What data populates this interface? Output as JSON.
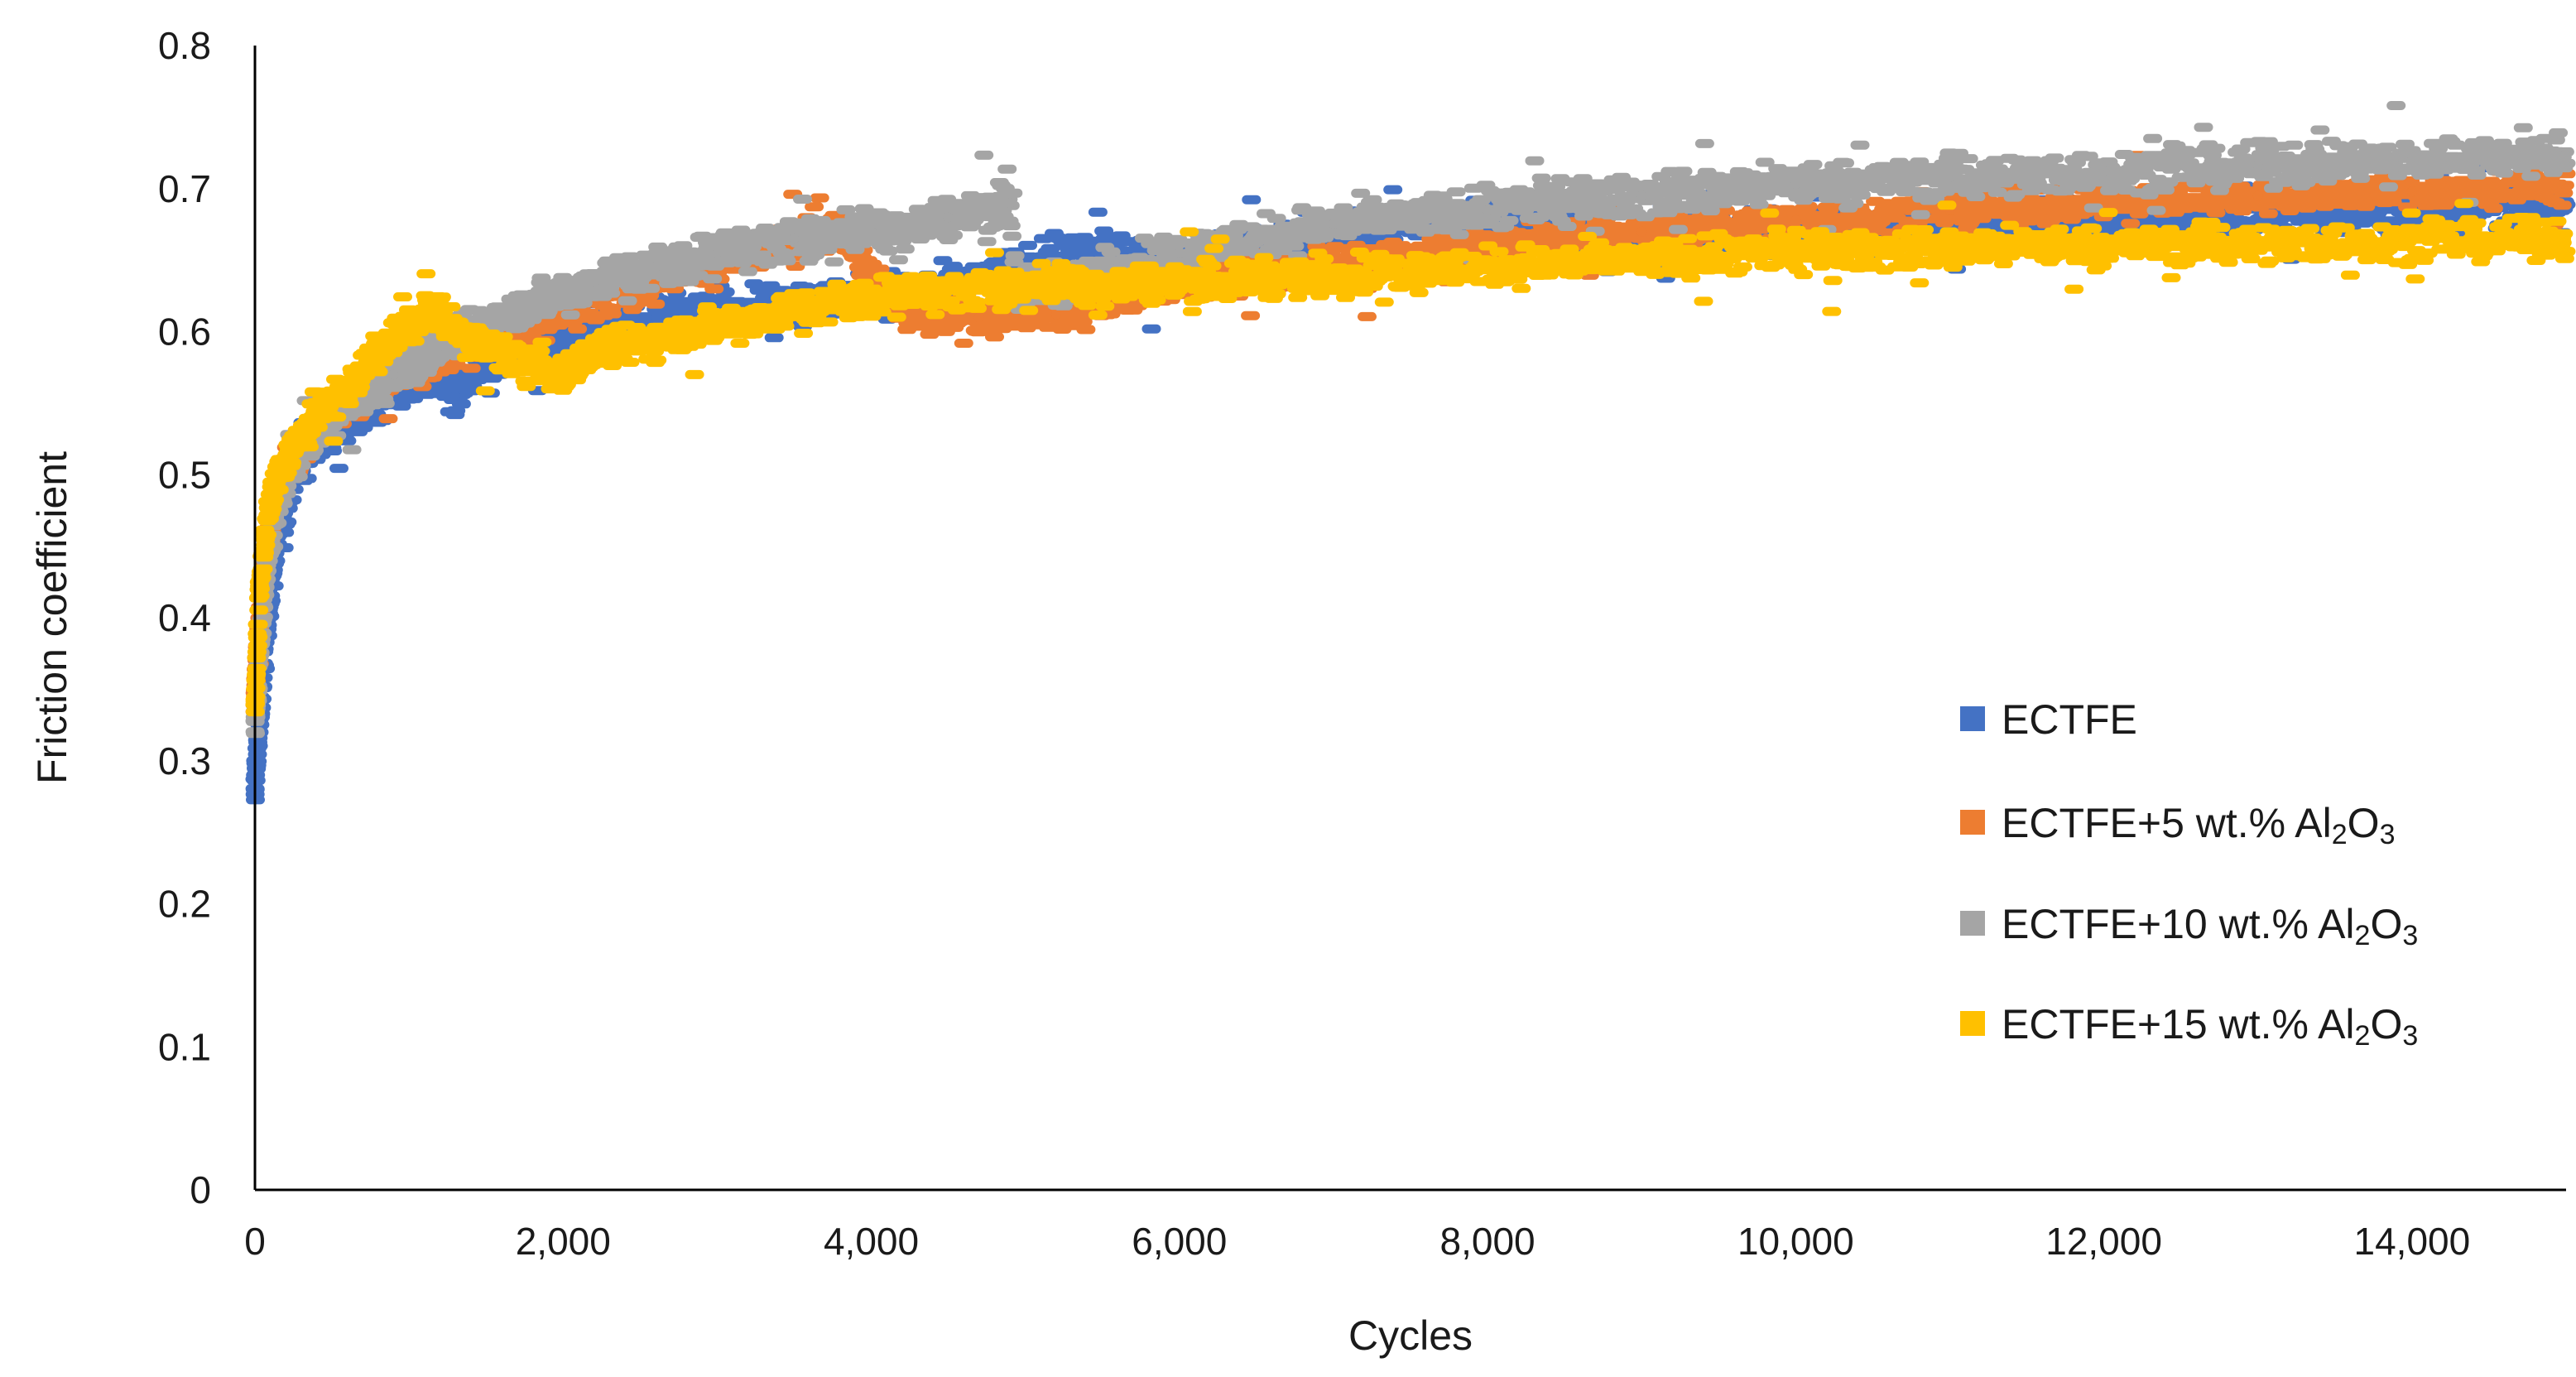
{
  "chart_data": {
    "type": "scatter",
    "title": "",
    "xlabel": "Cycles",
    "ylabel": "Friction coefficient",
    "xlim": [
      0,
      15000
    ],
    "ylim": [
      0,
      0.8
    ],
    "x_ticks": [
      0,
      2000,
      4000,
      6000,
      8000,
      10000,
      12000,
      14000
    ],
    "x_tick_labels": [
      "0",
      "2,000",
      "4,000",
      "6,000",
      "8,000",
      "10,000",
      "12,000",
      "14,000"
    ],
    "y_ticks": [
      0,
      0.1,
      0.2,
      0.3,
      0.4,
      0.5,
      0.6,
      0.7,
      0.8
    ],
    "y_tick_labels": [
      "0",
      "0.1",
      "0.2",
      "0.3",
      "0.4",
      "0.5",
      "0.6",
      "0.7",
      "0.8"
    ],
    "grid": false,
    "legend_position": "right",
    "series": [
      {
        "name": "ECTFE",
        "legend_label": {
          "main": "ECTFE",
          "sub1": "",
          "mid": "",
          "sub2": ""
        },
        "color": "#4472C4",
        "noise": 0.012,
        "x": [
          0,
          30,
          80,
          150,
          250,
          400,
          600,
          900,
          1200,
          1300,
          1500,
          1800,
          2200,
          2600,
          3000,
          3500,
          4000,
          4500,
          5000,
          5300,
          5600,
          6000,
          6500,
          7000,
          7500,
          8000,
          8500,
          9000,
          9500,
          10000,
          11000,
          12000,
          13000,
          14000,
          15000
        ],
        "y": [
          0.28,
          0.33,
          0.4,
          0.46,
          0.5,
          0.52,
          0.54,
          0.56,
          0.57,
          0.555,
          0.58,
          0.59,
          0.6,
          0.61,
          0.615,
          0.62,
          0.625,
          0.63,
          0.645,
          0.655,
          0.65,
          0.645,
          0.66,
          0.67,
          0.675,
          0.675,
          0.67,
          0.665,
          0.668,
          0.67,
          0.675,
          0.68,
          0.68,
          0.683,
          0.685
        ]
      },
      {
        "name": "ECTFE+5 wt.% Al2O3",
        "legend_label": {
          "main": "ECTFE+5 wt.% Al",
          "sub1": "2",
          "mid": "O",
          "sub2": "3"
        },
        "color": "#ED7D31",
        "noise": 0.01,
        "x": [
          0,
          30,
          80,
          150,
          250,
          400,
          600,
          900,
          1200,
          1500,
          1800,
          2200,
          2600,
          3000,
          3500,
          3800,
          4200,
          4700,
          5200,
          5600,
          6000,
          6500,
          7000,
          8000,
          9000,
          10000,
          11000,
          12000,
          13000,
          14000,
          15000
        ],
        "y": [
          0.34,
          0.4,
          0.45,
          0.49,
          0.51,
          0.53,
          0.55,
          0.57,
          0.58,
          0.595,
          0.605,
          0.62,
          0.635,
          0.65,
          0.665,
          0.67,
          0.615,
          0.61,
          0.612,
          0.62,
          0.63,
          0.64,
          0.645,
          0.66,
          0.67,
          0.678,
          0.685,
          0.69,
          0.695,
          0.698,
          0.7
        ]
      },
      {
        "name": "ECTFE+10 wt.% Al2O3",
        "legend_label": {
          "main": "ECTFE+10 wt.% Al",
          "sub1": "2",
          "mid": "O",
          "sub2": "3"
        },
        "color": "#A5A5A5",
        "noise": 0.012,
        "x": [
          0,
          30,
          80,
          150,
          250,
          400,
          600,
          900,
          1200,
          1500,
          1800,
          2200,
          2600,
          3000,
          3500,
          4000,
          4500,
          4900,
          4950,
          5300,
          5600,
          6000,
          6500,
          7000,
          8000,
          9000,
          10000,
          11000,
          12000,
          13000,
          14000,
          15000
        ],
        "y": [
          0.32,
          0.38,
          0.44,
          0.48,
          0.51,
          0.53,
          0.55,
          0.57,
          0.59,
          0.605,
          0.62,
          0.635,
          0.645,
          0.655,
          0.665,
          0.67,
          0.68,
          0.69,
          0.63,
          0.635,
          0.645,
          0.655,
          0.665,
          0.675,
          0.685,
          0.695,
          0.703,
          0.708,
          0.712,
          0.716,
          0.72,
          0.725
        ]
      },
      {
        "name": "ECTFE+15 wt.% Al2O3",
        "legend_label": {
          "main": "ECTFE+15 wt.% Al",
          "sub1": "2",
          "mid": "O",
          "sub2": "3"
        },
        "color": "#FFC000",
        "noise": 0.011,
        "x": [
          0,
          30,
          80,
          150,
          250,
          400,
          600,
          800,
          1000,
          1150,
          1300,
          1500,
          1800,
          1950,
          2200,
          2600,
          3000,
          3500,
          4000,
          4500,
          5000,
          5500,
          6000,
          7000,
          8000,
          9000,
          10000,
          11000,
          12000,
          13000,
          14000,
          15000
        ],
        "y": [
          0.34,
          0.42,
          0.47,
          0.5,
          0.52,
          0.54,
          0.56,
          0.585,
          0.605,
          0.615,
          0.6,
          0.59,
          0.575,
          0.57,
          0.585,
          0.595,
          0.605,
          0.615,
          0.625,
          0.628,
          0.632,
          0.633,
          0.635,
          0.64,
          0.645,
          0.65,
          0.655,
          0.658,
          0.66,
          0.662,
          0.663,
          0.665
        ]
      }
    ]
  }
}
